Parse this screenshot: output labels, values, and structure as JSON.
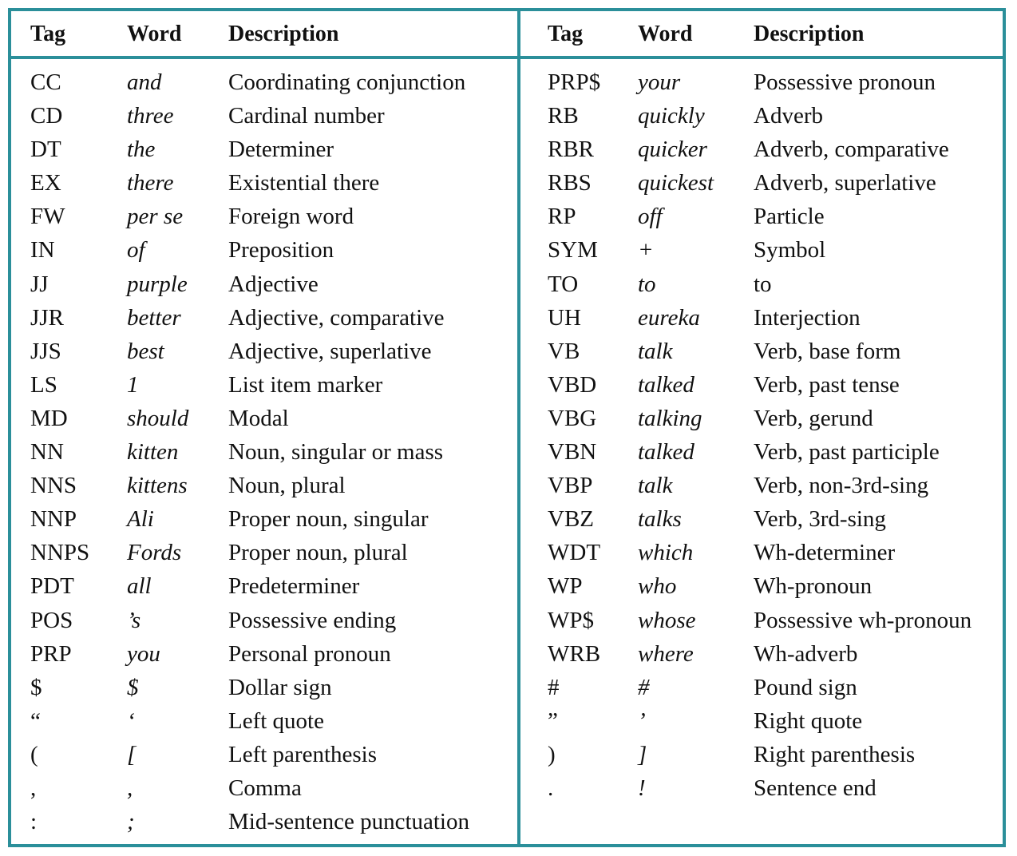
{
  "headers": {
    "tag": "Tag",
    "word": "Word",
    "description": "Description"
  },
  "left_rows": [
    {
      "tag": "CC",
      "word": "and",
      "desc": "Coordinating conjunction"
    },
    {
      "tag": "CD",
      "word": "three",
      "desc": "Cardinal number"
    },
    {
      "tag": "DT",
      "word": "the",
      "desc": "Determiner"
    },
    {
      "tag": "EX",
      "word": "there",
      "desc": "Existential there"
    },
    {
      "tag": "FW",
      "word": "per se",
      "desc": "Foreign word"
    },
    {
      "tag": "IN",
      "word": "of",
      "desc": "Preposition"
    },
    {
      "tag": "JJ",
      "word": "purple",
      "desc": "Adjective"
    },
    {
      "tag": "JJR",
      "word": "better",
      "desc": "Adjective, comparative"
    },
    {
      "tag": "JJS",
      "word": "best",
      "desc": "Adjective, superlative"
    },
    {
      "tag": "LS",
      "word": "1",
      "desc": "List item marker"
    },
    {
      "tag": "MD",
      "word": "should",
      "desc": "Modal"
    },
    {
      "tag": "NN",
      "word": "kitten",
      "desc": "Noun, singular or mass"
    },
    {
      "tag": "NNS",
      "word": "kittens",
      "desc": "Noun, plural"
    },
    {
      "tag": "NNP",
      "word": "Ali",
      "desc": "Proper noun, singular"
    },
    {
      "tag": "NNPS",
      "word": "Fords",
      "desc": "Proper noun, plural"
    },
    {
      "tag": "PDT",
      "word": "all",
      "desc": "Predeterminer"
    },
    {
      "tag": "POS",
      "word": "’s",
      "desc": "Possessive ending"
    },
    {
      "tag": "PRP",
      "word": "you",
      "desc": "Personal pronoun"
    },
    {
      "tag": "$",
      "word": "$",
      "desc": "Dollar sign"
    },
    {
      "tag": "“",
      "word": "‘",
      "desc": "Left quote"
    },
    {
      "tag": "(",
      "word": "[",
      "desc": "Left parenthesis"
    },
    {
      "tag": ",",
      "word": ",",
      "desc": "Comma"
    },
    {
      "tag": ":",
      "word": ";",
      "desc": "Mid-sentence punctuation"
    }
  ],
  "right_rows": [
    {
      "tag": "PRP$",
      "word": "your",
      "desc": "Possessive pronoun"
    },
    {
      "tag": "RB",
      "word": "quickly",
      "desc": "Adverb"
    },
    {
      "tag": "RBR",
      "word": "quicker",
      "desc": "Adverb, comparative"
    },
    {
      "tag": "RBS",
      "word": "quickest",
      "desc": "Adverb, superlative"
    },
    {
      "tag": "RP",
      "word": "off",
      "desc": "Particle"
    },
    {
      "tag": "SYM",
      "word": "+",
      "desc": "Symbol"
    },
    {
      "tag": "TO",
      "word": "to",
      "desc": "to"
    },
    {
      "tag": "UH",
      "word": "eureka",
      "desc": "Interjection"
    },
    {
      "tag": "VB",
      "word": "talk",
      "desc": "Verb, base form"
    },
    {
      "tag": "VBD",
      "word": "talked",
      "desc": "Verb, past tense"
    },
    {
      "tag": "VBG",
      "word": "talking",
      "desc": "Verb, gerund"
    },
    {
      "tag": "VBN",
      "word": "talked",
      "desc": "Verb, past participle"
    },
    {
      "tag": "VBP",
      "word": "talk",
      "desc": "Verb, non-3rd-sing"
    },
    {
      "tag": "VBZ",
      "word": "talks",
      "desc": "Verb, 3rd-sing"
    },
    {
      "tag": "WDT",
      "word": "which",
      "desc": "Wh-determiner"
    },
    {
      "tag": "WP",
      "word": "who",
      "desc": "Wh-pronoun"
    },
    {
      "tag": "WP$",
      "word": "whose",
      "desc": "Possessive wh-pronoun"
    },
    {
      "tag": "WRB",
      "word": "where",
      "desc": "Wh-adverb"
    },
    {
      "tag": "#",
      "word": "#",
      "desc": "Pound sign"
    },
    {
      "tag": "”",
      "word": "’",
      "desc": "Right quote"
    },
    {
      "tag": ")",
      "word": "]",
      "desc": "Right parenthesis"
    },
    {
      "tag": ".",
      "word": "!",
      "desc": "Sentence end"
    }
  ],
  "colors": {
    "border": "#2b8f9a",
    "text": "#111111"
  }
}
